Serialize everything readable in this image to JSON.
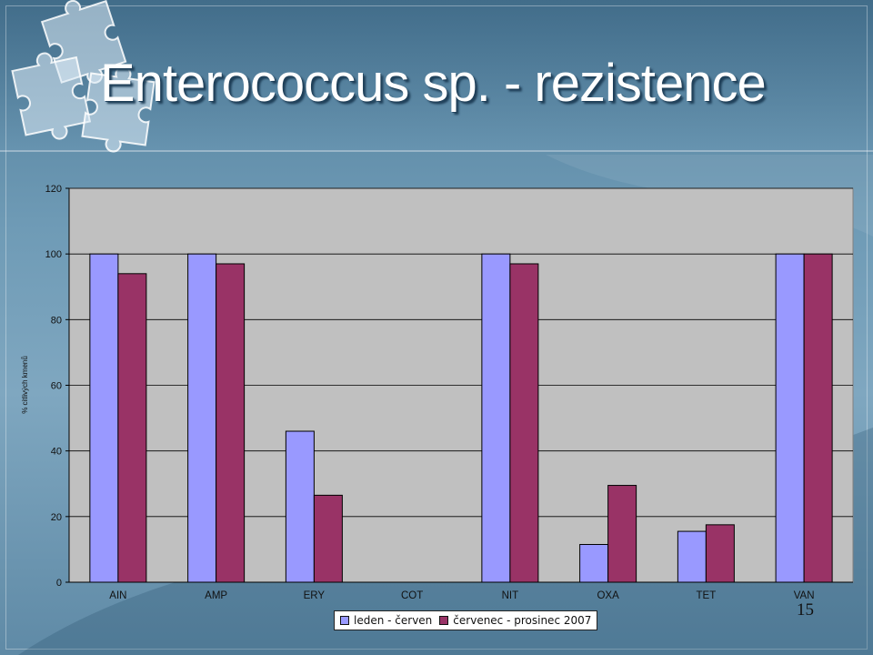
{
  "slide": {
    "title": "Enterococcus sp. - rezistence",
    "page_number": "15"
  },
  "colors": {
    "series1": "#9999ff",
    "series2": "#993366",
    "plot_background": "#c0c0c0",
    "gridline": "#000000"
  },
  "chart_data": {
    "type": "bar",
    "title": "",
    "xlabel": "",
    "ylabel": "% citlivých kmenů",
    "ylim": [
      0,
      120
    ],
    "yticks": [
      0,
      20,
      40,
      60,
      80,
      100,
      120
    ],
    "grid": true,
    "legend_position": "bottom",
    "categories": [
      "AIN",
      "AMP",
      "ERY",
      "COT",
      "NIT",
      "OXA",
      "TET",
      "VAN"
    ],
    "series": [
      {
        "name": "leden - červen",
        "values": [
          100,
          100,
          46,
          0,
          100,
          11.5,
          15.5,
          100
        ]
      },
      {
        "name": "červenec - prosinec 2007",
        "values": [
          94,
          97,
          26.5,
          0,
          97,
          29.5,
          17.5,
          100
        ]
      }
    ]
  }
}
